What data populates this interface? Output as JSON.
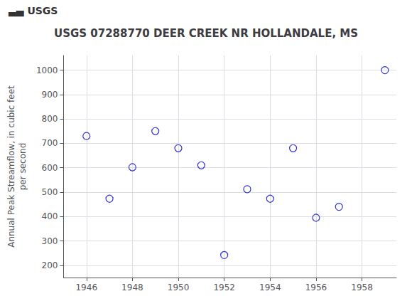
{
  "chart_data": {
    "type": "scatter",
    "title": "USGS 07288770 DEER CREEK NR HOLLANDALE, MS",
    "annotations": [
      "▃▄",
      "USGS"
    ],
    "ylabel": "Annual Peak Streamflow, in cubic feet\nper second",
    "x": [
      1946,
      1947,
      1948,
      1949,
      1950,
      1951,
      1952,
      1953,
      1954,
      1955,
      1956,
      1957,
      1959
    ],
    "values": [
      730,
      473,
      602,
      750,
      680,
      610,
      242,
      512,
      473,
      680,
      395,
      440,
      1000
    ],
    "color": "#0000cc",
    "marker": "circle",
    "xlim": [
      1945.0,
      1959.5
    ],
    "ylim": [
      150,
      1060
    ],
    "xticks": [
      1946,
      1948,
      1950,
      1952,
      1954,
      1956,
      1958
    ],
    "yticks": [
      200,
      300,
      400,
      500,
      600,
      700,
      800,
      900,
      1000
    ],
    "grid": true
  }
}
